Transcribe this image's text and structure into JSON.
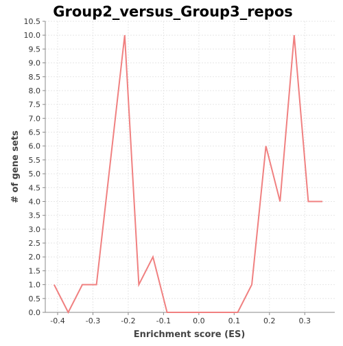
{
  "chart_data": {
    "type": "line",
    "title": "Group2_versus_Group3_repos",
    "xlabel": "Enrichment score (ES)",
    "ylabel": "# of gene sets",
    "xlim": [
      -0.435,
      0.385
    ],
    "ylim": [
      0,
      10.5
    ],
    "x_ticks": [
      -0.4,
      -0.3,
      -0.2,
      -0.1,
      0.0,
      0.1,
      0.2,
      0.3
    ],
    "x_tick_labels": [
      "-0.4",
      "-0.3",
      "-0.2",
      "-0.1",
      "0.0",
      "0.1",
      "0.2",
      "0.3"
    ],
    "y_ticks": [
      0.0,
      0.5,
      1.0,
      1.5,
      2.0,
      2.5,
      3.0,
      3.5,
      4.0,
      4.5,
      5.0,
      5.5,
      6.0,
      6.5,
      7.0,
      7.5,
      8.0,
      8.5,
      9.0,
      9.5,
      10.0,
      10.5
    ],
    "y_tick_labels": [
      "0.0",
      "0.5",
      "1.0",
      "1.5",
      "2.0",
      "2.5",
      "3.0",
      "3.5",
      "4.0",
      "4.5",
      "5.0",
      "5.5",
      "6.0",
      "6.5",
      "7.0",
      "7.5",
      "8.0",
      "8.5",
      "9.0",
      "9.5",
      "10.0",
      "10.5"
    ],
    "grid": true,
    "series": [
      {
        "color": "#f08080",
        "x": [
          -0.41,
          -0.37,
          -0.33,
          -0.29,
          -0.21,
          -0.17,
          -0.13,
          -0.09,
          0.11,
          0.15,
          0.19,
          0.23,
          0.27,
          0.31,
          0.35
        ],
        "y": [
          1,
          0,
          1,
          1,
          10,
          1,
          2,
          0,
          0,
          1,
          6,
          4,
          10,
          4,
          4
        ]
      }
    ]
  }
}
